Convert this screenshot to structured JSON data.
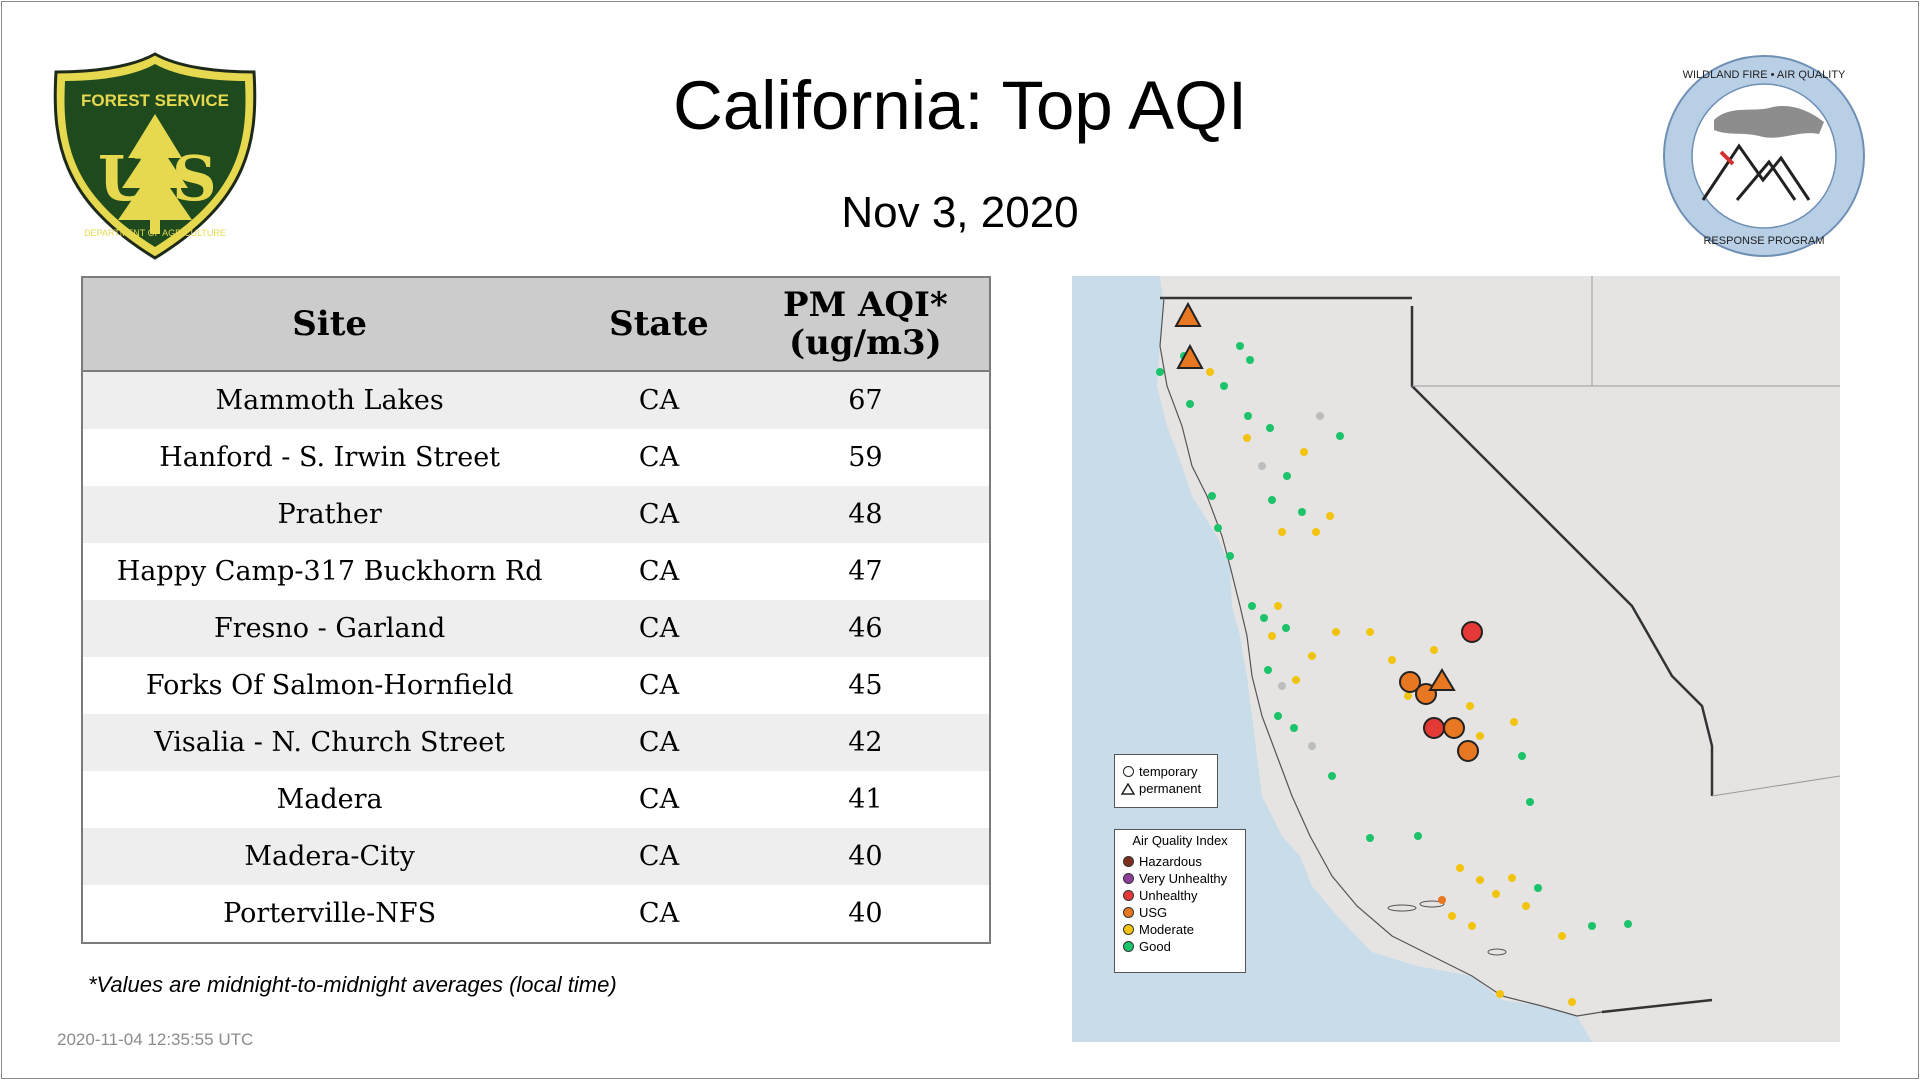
{
  "title": "California: Top AQI",
  "date": "Nov  3, 2020",
  "logos": {
    "left": {
      "top_text": "FOREST SERVICE",
      "letters": "U S",
      "bottom_text": "DEPARTMENT OF AGRICULTURE"
    },
    "right": {
      "top_text": "WILDLAND FIRE • AIR QUALITY",
      "bottom_text": "RESPONSE PROGRAM"
    }
  },
  "table": {
    "headers": {
      "site": "Site",
      "state": "State",
      "aqi_line1": "PM AQI*",
      "aqi_line2": "(ug/m3)"
    },
    "rows": [
      {
        "site": "Mammoth Lakes",
        "state": "CA",
        "aqi": "67"
      },
      {
        "site": "Hanford - S. Irwin Street",
        "state": "CA",
        "aqi": "59"
      },
      {
        "site": "Prather",
        "state": "CA",
        "aqi": "48"
      },
      {
        "site": "Happy Camp-317 Buckhorn Rd",
        "state": "CA",
        "aqi": "47"
      },
      {
        "site": "Fresno - Garland",
        "state": "CA",
        "aqi": "46"
      },
      {
        "site": "Forks Of Salmon-Hornfield",
        "state": "CA",
        "aqi": "45"
      },
      {
        "site": "Visalia - N. Church Street",
        "state": "CA",
        "aqi": "42"
      },
      {
        "site": "Madera",
        "state": "CA",
        "aqi": "41"
      },
      {
        "site": "Madera-City",
        "state": "CA",
        "aqi": "40"
      },
      {
        "site": "Porterville-NFS",
        "state": "CA",
        "aqi": "40"
      }
    ]
  },
  "footnote": "*Values are midnight-to-midnight averages (local time)",
  "timestamp": "2020-11-04 12:35:55 UTC",
  "map": {
    "legend_type": [
      {
        "label": "temporary",
        "shape": "circle"
      },
      {
        "label": "permanent",
        "shape": "triangle"
      }
    ],
    "legend_aqi": {
      "title": "Air Quality Index",
      "items": [
        {
          "label": "Hazardous",
          "color": "#7e2f1e"
        },
        {
          "label": "Very Unhealthy",
          "color": "#8f3f97"
        },
        {
          "label": "Unhealthy",
          "color": "#e53935"
        },
        {
          "label": "USG",
          "color": "#e87722"
        },
        {
          "label": "Moderate",
          "color": "#f2c40f"
        },
        {
          "label": "Good",
          "color": "#1bc46b"
        }
      ]
    },
    "colors": {
      "ocean": "#c9dcea",
      "land": "#e6e4e2",
      "border": "#333333",
      "no_data": "#bdbdbd"
    }
  }
}
